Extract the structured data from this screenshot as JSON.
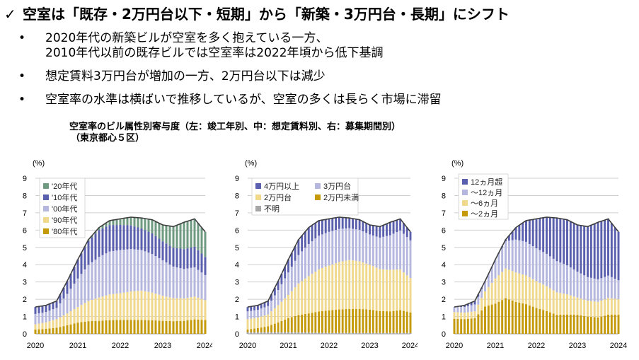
{
  "title": {
    "check": "✓",
    "text": "空室は「既存・2万円台以下・短期」から「新築・3万円台・長期」にシフト"
  },
  "bullets": [
    {
      "marker": "•",
      "lines": [
        "2020年代の新築ビルが空室を多く抱えている一方、",
        "2010年代以前の既存ビルでは空室率は2022年頃から低下基調"
      ]
    },
    {
      "marker": "•",
      "lines": [
        "想定賃料3万円台が増加の一方、2万円台以下は減少"
      ]
    },
    {
      "marker": "•",
      "lines": [
        "空室率の水準は横ばいで推移しているが、空室の多くは長らく市場に滞留"
      ]
    }
  ],
  "caption": {
    "line1": "空室率のビル属性別寄与度（左：竣工年別、中：想定賃料別、右：募集期間別）",
    "line2": "（東京都心５区）"
  },
  "chart_data": [
    {
      "type": "bar",
      "stacked": true,
      "name": "by-completion-year",
      "ylabel": "(%)",
      "ylim": [
        0,
        9
      ],
      "yticks": [
        0,
        1,
        2,
        3,
        4,
        5,
        6,
        7,
        8,
        9
      ],
      "xticks": [
        "2020",
        "2021",
        "2022",
        "2023",
        "2024"
      ],
      "x_start": 2020.0,
      "x_end": 2024.0,
      "grid": true,
      "legend_position": "top-left",
      "total_line": [
        [
          2020.0,
          1.55
        ],
        [
          2020.25,
          1.65
        ],
        [
          2020.5,
          1.9
        ],
        [
          2020.75,
          3.05
        ],
        [
          2021.0,
          4.3
        ],
        [
          2021.25,
          5.45
        ],
        [
          2021.5,
          6.15
        ],
        [
          2021.75,
          6.55
        ],
        [
          2022.0,
          6.65
        ],
        [
          2022.25,
          6.75
        ],
        [
          2022.5,
          6.7
        ],
        [
          2022.75,
          6.6
        ],
        [
          2023.0,
          6.3
        ],
        [
          2023.25,
          6.2
        ],
        [
          2023.5,
          6.45
        ],
        [
          2023.75,
          6.65
        ],
        [
          2024.0,
          5.9
        ]
      ],
      "series": [
        {
          "name": "'80年代",
          "color": "#C49A0A",
          "points": [
            [
              2020.0,
              0.25
            ],
            [
              2020.5,
              0.35
            ],
            [
              2021.0,
              0.65
            ],
            [
              2021.5,
              0.75
            ],
            [
              2022.0,
              0.8
            ],
            [
              2022.5,
              0.8
            ],
            [
              2023.0,
              0.75
            ],
            [
              2023.5,
              0.75
            ],
            [
              2024.0,
              0.8
            ]
          ]
        },
        {
          "name": "'90年代",
          "color": "#F0D88C",
          "points": [
            [
              2020.0,
              0.3
            ],
            [
              2020.5,
              0.5
            ],
            [
              2021.0,
              0.9
            ],
            [
              2021.5,
              1.35
            ],
            [
              2022.0,
              1.55
            ],
            [
              2022.5,
              1.7
            ],
            [
              2023.0,
              1.45
            ],
            [
              2023.5,
              1.3
            ],
            [
              2024.0,
              1.15
            ]
          ]
        },
        {
          "name": "'00年代",
          "color": "#B6B7DF",
          "points": [
            [
              2020.0,
              0.6
            ],
            [
              2020.5,
              0.65
            ],
            [
              2021.0,
              1.65
            ],
            [
              2021.5,
              2.35
            ],
            [
              2022.0,
              2.5
            ],
            [
              2022.5,
              2.35
            ],
            [
              2023.0,
              2.05
            ],
            [
              2023.5,
              1.7
            ],
            [
              2024.0,
              1.45
            ]
          ]
        },
        {
          "name": "'10年代",
          "color": "#5A5FAE",
          "points": [
            [
              2020.0,
              0.4
            ],
            [
              2020.5,
              0.4
            ],
            [
              2021.0,
              1.1
            ],
            [
              2021.5,
              1.55
            ],
            [
              2022.0,
              1.45
            ],
            [
              2022.5,
              1.25
            ],
            [
              2023.0,
              1.1
            ],
            [
              2023.5,
              1.15
            ],
            [
              2024.0,
              1.05
            ]
          ]
        },
        {
          "name": "'20年代",
          "color": "#6E9A82",
          "points": [
            [
              2020.0,
              0.0
            ],
            [
              2020.5,
              0.0
            ],
            [
              2021.0,
              0.0
            ],
            [
              2021.5,
              0.15
            ],
            [
              2022.0,
              0.35
            ],
            [
              2022.5,
              0.6
            ],
            [
              2023.0,
              0.95
            ],
            [
              2023.5,
              1.55
            ],
            [
              2024.0,
              1.45
            ]
          ]
        }
      ]
    },
    {
      "type": "bar",
      "stacked": true,
      "name": "by-assumed-rent",
      "ylabel": "(%)",
      "ylim": [
        0,
        9
      ],
      "yticks": [
        0,
        1,
        2,
        3,
        4,
        5,
        6,
        7,
        8,
        9
      ],
      "xticks": [
        "2020",
        "2021",
        "2022",
        "2023",
        "2024"
      ],
      "x_start": 2020.0,
      "x_end": 2024.0,
      "grid": true,
      "legend_position": "top-left",
      "total_line": [
        [
          2020.0,
          1.55
        ],
        [
          2020.25,
          1.65
        ],
        [
          2020.5,
          1.9
        ],
        [
          2020.75,
          3.05
        ],
        [
          2021.0,
          4.3
        ],
        [
          2021.25,
          5.45
        ],
        [
          2021.5,
          6.15
        ],
        [
          2021.75,
          6.55
        ],
        [
          2022.0,
          6.65
        ],
        [
          2022.25,
          6.75
        ],
        [
          2022.5,
          6.7
        ],
        [
          2022.75,
          6.6
        ],
        [
          2023.0,
          6.3
        ],
        [
          2023.25,
          6.2
        ],
        [
          2023.5,
          6.45
        ],
        [
          2023.75,
          6.65
        ],
        [
          2024.0,
          5.9
        ]
      ],
      "series": [
        {
          "name": "不明",
          "color": "#A6A6A6",
          "points": [
            [
              2020.0,
              0.1
            ],
            [
              2021.0,
              0.1
            ],
            [
              2022.0,
              0.05
            ],
            [
              2023.0,
              0.05
            ],
            [
              2024.0,
              0.05
            ]
          ]
        },
        {
          "name": "2万円未満",
          "color": "#C49A0A",
          "points": [
            [
              2020.0,
              0.15
            ],
            [
              2020.5,
              0.35
            ],
            [
              2021.0,
              0.8
            ],
            [
              2021.5,
              1.1
            ],
            [
              2022.0,
              1.3
            ],
            [
              2022.5,
              1.4
            ],
            [
              2023.0,
              1.35
            ],
            [
              2023.5,
              1.25
            ],
            [
              2024.0,
              1.2
            ]
          ]
        },
        {
          "name": "2万円台",
          "color": "#F0D88C",
          "points": [
            [
              2020.0,
              0.6
            ],
            [
              2020.5,
              0.7
            ],
            [
              2021.0,
              1.35
            ],
            [
              2021.5,
              2.15
            ],
            [
              2022.0,
              2.6
            ],
            [
              2022.5,
              2.85
            ],
            [
              2023.0,
              2.6
            ],
            [
              2023.5,
              2.4
            ],
            [
              2024.0,
              2.0
            ]
          ]
        },
        {
          "name": "3万円台",
          "color": "#B6B7DF",
          "points": [
            [
              2020.0,
              0.45
            ],
            [
              2020.5,
              0.5
            ],
            [
              2021.0,
              1.3
            ],
            [
              2021.5,
              1.85
            ],
            [
              2022.0,
              1.95
            ],
            [
              2022.5,
              1.85
            ],
            [
              2023.0,
              1.75
            ],
            [
              2023.5,
              2.0
            ],
            [
              2024.0,
              2.2
            ]
          ]
        },
        {
          "name": "4万円以上",
          "color": "#5A5FAE",
          "points": [
            [
              2020.0,
              0.25
            ],
            [
              2020.5,
              0.3
            ],
            [
              2021.0,
              0.75
            ],
            [
              2021.5,
              0.95
            ],
            [
              2022.0,
              0.75
            ],
            [
              2022.5,
              0.6
            ],
            [
              2023.0,
              0.55
            ],
            [
              2023.5,
              0.75
            ],
            [
              2024.0,
              0.5
            ]
          ]
        }
      ]
    },
    {
      "type": "bar",
      "stacked": true,
      "name": "by-vacancy-period",
      "ylabel": "(%)",
      "ylim": [
        0,
        9
      ],
      "yticks": [
        0,
        1,
        2,
        3,
        4,
        5,
        6,
        7,
        8,
        9
      ],
      "xticks": [
        "2020",
        "2021",
        "2022",
        "2023",
        "2024"
      ],
      "x_start": 2020.0,
      "x_end": 2024.0,
      "grid": true,
      "legend_position": "top-left",
      "total_line": [
        [
          2020.0,
          1.55
        ],
        [
          2020.25,
          1.65
        ],
        [
          2020.5,
          1.9
        ],
        [
          2020.75,
          3.05
        ],
        [
          2021.0,
          4.3
        ],
        [
          2021.25,
          5.45
        ],
        [
          2021.5,
          6.15
        ],
        [
          2021.75,
          6.55
        ],
        [
          2022.0,
          6.65
        ],
        [
          2022.25,
          6.75
        ],
        [
          2022.5,
          6.7
        ],
        [
          2022.75,
          6.6
        ],
        [
          2023.0,
          6.3
        ],
        [
          2023.25,
          6.2
        ],
        [
          2023.5,
          6.45
        ],
        [
          2023.75,
          6.65
        ],
        [
          2024.0,
          5.9
        ]
      ],
      "series": [
        {
          "name": "～2ヵ月",
          "color": "#C49A0A",
          "points": [
            [
              2020.0,
              0.9
            ],
            [
              2020.5,
              0.9
            ],
            [
              2020.75,
              1.6
            ],
            [
              2021.0,
              1.75
            ],
            [
              2021.25,
              2.1
            ],
            [
              2021.5,
              1.85
            ],
            [
              2022.0,
              1.5
            ],
            [
              2022.5,
              1.1
            ],
            [
              2023.0,
              1.1
            ],
            [
              2023.5,
              0.95
            ],
            [
              2024.0,
              1.1
            ]
          ]
        },
        {
          "name": "～6ヵ月",
          "color": "#F0D88C",
          "points": [
            [
              2020.0,
              0.4
            ],
            [
              2020.5,
              0.4
            ],
            [
              2020.75,
              0.9
            ],
            [
              2021.0,
              1.45
            ],
            [
              2021.25,
              1.75
            ],
            [
              2021.5,
              1.7
            ],
            [
              2022.0,
              1.55
            ],
            [
              2022.5,
              1.3
            ],
            [
              2023.0,
              1.0
            ],
            [
              2023.5,
              0.9
            ],
            [
              2024.0,
              0.9
            ]
          ]
        },
        {
          "name": "～12ヵ月",
          "color": "#B6B7DF",
          "points": [
            [
              2020.0,
              0.3
            ],
            [
              2020.5,
              0.4
            ],
            [
              2020.75,
              0.6
            ],
            [
              2021.0,
              1.1
            ],
            [
              2021.25,
              1.6
            ],
            [
              2021.5,
              1.9
            ],
            [
              2022.0,
              1.9
            ],
            [
              2022.5,
              1.8
            ],
            [
              2023.0,
              1.5
            ],
            [
              2023.5,
              1.3
            ],
            [
              2024.0,
              1.1
            ]
          ]
        },
        {
          "name": "12ヵ月超",
          "color": "#5A5FAE",
          "points": [
            [
              2020.0,
              0.0
            ],
            [
              2020.5,
              0.2
            ],
            [
              2020.75,
              0.0
            ],
            [
              2021.0,
              0.0
            ],
            [
              2021.25,
              0.1
            ],
            [
              2021.5,
              0.7
            ],
            [
              2022.0,
              1.7
            ],
            [
              2022.5,
              2.5
            ],
            [
              2023.0,
              2.7
            ],
            [
              2023.5,
              3.3
            ],
            [
              2024.0,
              2.8
            ]
          ]
        }
      ]
    }
  ]
}
